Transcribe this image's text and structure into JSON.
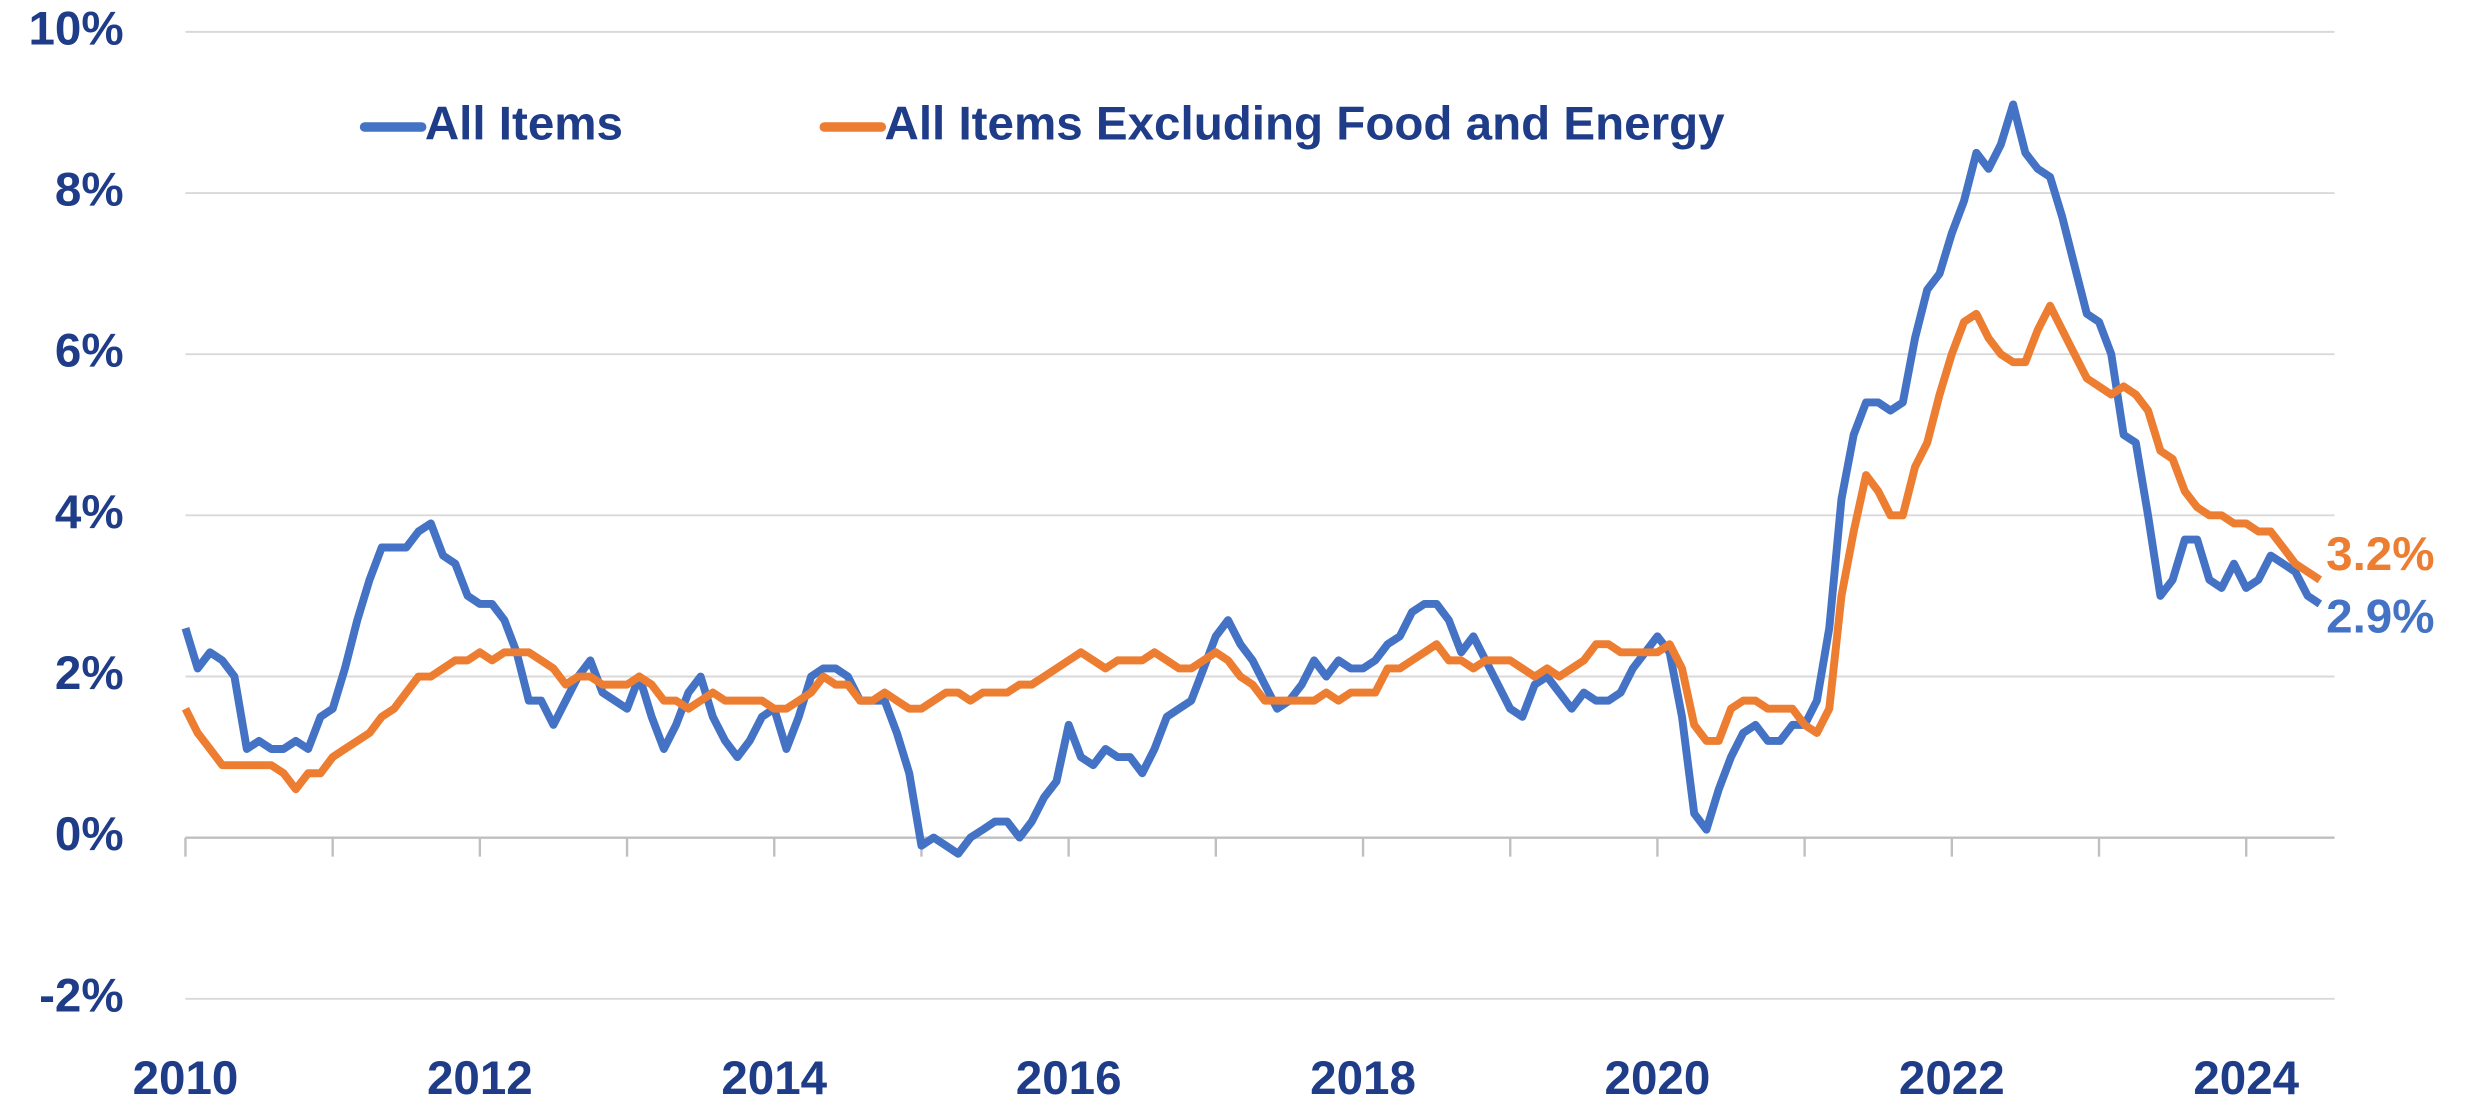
{
  "chart_data": {
    "type": "line",
    "legend": "top-left",
    "grid": true,
    "xlim": [
      2010,
      2024.6
    ],
    "xticks": [
      2010,
      2012,
      2014,
      2016,
      2018,
      2020,
      2022,
      2024
    ],
    "xminor_ticks": [
      2011,
      2013,
      2015,
      2017,
      2019,
      2021,
      2023
    ],
    "ylim": [
      -2,
      10
    ],
    "yticks": [
      {
        "value": -2,
        "label": "-2%"
      },
      {
        "value": 0,
        "label": "0%"
      },
      {
        "value": 2,
        "label": "2%"
      },
      {
        "value": 4,
        "label": "4%"
      },
      {
        "value": 6,
        "label": "6%"
      },
      {
        "value": 8,
        "label": "8%"
      },
      {
        "value": 10,
        "label": "10%"
      }
    ],
    "x": [
      2010,
      2010.083,
      2010.167,
      2010.25,
      2010.333,
      2010.417,
      2010.5,
      2010.583,
      2010.667,
      2010.75,
      2010.833,
      2010.917,
      2011,
      2011.083,
      2011.167,
      2011.25,
      2011.333,
      2011.417,
      2011.5,
      2011.583,
      2011.667,
      2011.75,
      2011.833,
      2011.917,
      2012,
      2012.083,
      2012.167,
      2012.25,
      2012.333,
      2012.417,
      2012.5,
      2012.583,
      2012.667,
      2012.75,
      2012.833,
      2012.917,
      2013,
      2013.083,
      2013.167,
      2013.25,
      2013.333,
      2013.417,
      2013.5,
      2013.583,
      2013.667,
      2013.75,
      2013.833,
      2013.917,
      2014,
      2014.083,
      2014.167,
      2014.25,
      2014.333,
      2014.417,
      2014.5,
      2014.583,
      2014.667,
      2014.75,
      2014.833,
      2014.917,
      2015,
      2015.083,
      2015.167,
      2015.25,
      2015.333,
      2015.417,
      2015.5,
      2015.583,
      2015.667,
      2015.75,
      2015.833,
      2015.917,
      2016,
      2016.083,
      2016.167,
      2016.25,
      2016.333,
      2016.417,
      2016.5,
      2016.583,
      2016.667,
      2016.75,
      2016.833,
      2016.917,
      2017,
      2017.083,
      2017.167,
      2017.25,
      2017.333,
      2017.417,
      2017.5,
      2017.583,
      2017.667,
      2017.75,
      2017.833,
      2017.917,
      2018,
      2018.083,
      2018.167,
      2018.25,
      2018.333,
      2018.417,
      2018.5,
      2018.583,
      2018.667,
      2018.75,
      2018.833,
      2018.917,
      2019,
      2019.083,
      2019.167,
      2019.25,
      2019.333,
      2019.417,
      2019.5,
      2019.583,
      2019.667,
      2019.75,
      2019.833,
      2019.917,
      2020,
      2020.083,
      2020.167,
      2020.25,
      2020.333,
      2020.417,
      2020.5,
      2020.583,
      2020.667,
      2020.75,
      2020.833,
      2020.917,
      2021,
      2021.083,
      2021.167,
      2021.25,
      2021.333,
      2021.417,
      2021.5,
      2021.583,
      2021.667,
      2021.75,
      2021.833,
      2021.917,
      2022,
      2022.083,
      2022.167,
      2022.25,
      2022.333,
      2022.417,
      2022.5,
      2022.583,
      2022.667,
      2022.75,
      2022.833,
      2022.917,
      2023,
      2023.083,
      2023.167,
      2023.25,
      2023.333,
      2023.417,
      2023.5,
      2023.583,
      2023.667,
      2023.75,
      2023.833,
      2023.917,
      2024,
      2024.083,
      2024.167,
      2024.25,
      2024.333,
      2024.417,
      2024.5
    ],
    "series": [
      {
        "name": "All Items",
        "color": "#4472c4",
        "end_label": "2.9%",
        "values": [
          2.6,
          2.1,
          2.3,
          2.2,
          2.0,
          1.1,
          1.2,
          1.1,
          1.1,
          1.2,
          1.1,
          1.5,
          1.6,
          2.1,
          2.7,
          3.2,
          3.6,
          3.6,
          3.6,
          3.8,
          3.9,
          3.5,
          3.4,
          3.0,
          2.9,
          2.9,
          2.7,
          2.3,
          1.7,
          1.7,
          1.4,
          1.7,
          2.0,
          2.2,
          1.8,
          1.7,
          1.6,
          2.0,
          1.5,
          1.1,
          1.4,
          1.8,
          2.0,
          1.5,
          1.2,
          1.0,
          1.2,
          1.5,
          1.6,
          1.1,
          1.5,
          2.0,
          2.1,
          2.1,
          2.0,
          1.7,
          1.7,
          1.7,
          1.3,
          0.8,
          -0.1,
          0.0,
          -0.1,
          -0.2,
          0.0,
          0.1,
          0.2,
          0.2,
          0.0,
          0.2,
          0.5,
          0.7,
          1.4,
          1.0,
          0.9,
          1.1,
          1.0,
          1.0,
          0.8,
          1.1,
          1.5,
          1.6,
          1.7,
          2.1,
          2.5,
          2.7,
          2.4,
          2.2,
          1.9,
          1.6,
          1.7,
          1.9,
          2.2,
          2.0,
          2.2,
          2.1,
          2.1,
          2.2,
          2.4,
          2.5,
          2.8,
          2.9,
          2.9,
          2.7,
          2.3,
          2.5,
          2.2,
          1.9,
          1.6,
          1.5,
          1.9,
          2.0,
          1.8,
          1.6,
          1.8,
          1.7,
          1.7,
          1.8,
          2.1,
          2.3,
          2.5,
          2.3,
          1.5,
          0.3,
          0.1,
          0.6,
          1.0,
          1.3,
          1.4,
          1.2,
          1.2,
          1.4,
          1.4,
          1.7,
          2.6,
          4.2,
          5.0,
          5.4,
          5.4,
          5.3,
          5.4,
          6.2,
          6.8,
          7.0,
          7.5,
          7.9,
          8.5,
          8.3,
          8.6,
          9.1,
          8.5,
          8.3,
          8.2,
          7.7,
          7.1,
          6.5,
          6.4,
          6.0,
          5.0,
          4.9,
          4.0,
          3.0,
          3.2,
          3.7,
          3.7,
          3.2,
          3.1,
          3.4,
          3.1,
          3.2,
          3.5,
          3.4,
          3.3,
          3.0,
          2.9
        ]
      },
      {
        "name": "All Items Excluding Food and Energy",
        "color": "#ed7d31",
        "end_label": "3.2%",
        "values": [
          1.6,
          1.3,
          1.1,
          0.9,
          0.9,
          0.9,
          0.9,
          0.9,
          0.8,
          0.6,
          0.8,
          0.8,
          1.0,
          1.1,
          1.2,
          1.3,
          1.5,
          1.6,
          1.8,
          2.0,
          2.0,
          2.1,
          2.2,
          2.2,
          2.3,
          2.2,
          2.3,
          2.3,
          2.3,
          2.2,
          2.1,
          1.9,
          2.0,
          2.0,
          1.9,
          1.9,
          1.9,
          2.0,
          1.9,
          1.7,
          1.7,
          1.6,
          1.7,
          1.8,
          1.7,
          1.7,
          1.7,
          1.7,
          1.6,
          1.6,
          1.7,
          1.8,
          2.0,
          1.9,
          1.9,
          1.7,
          1.7,
          1.8,
          1.7,
          1.6,
          1.6,
          1.7,
          1.8,
          1.8,
          1.7,
          1.8,
          1.8,
          1.8,
          1.9,
          1.9,
          2.0,
          2.1,
          2.2,
          2.3,
          2.2,
          2.1,
          2.2,
          2.2,
          2.2,
          2.3,
          2.2,
          2.1,
          2.1,
          2.2,
          2.3,
          2.2,
          2.0,
          1.9,
          1.7,
          1.7,
          1.7,
          1.7,
          1.7,
          1.8,
          1.7,
          1.8,
          1.8,
          1.8,
          2.1,
          2.1,
          2.2,
          2.3,
          2.4,
          2.2,
          2.2,
          2.1,
          2.2,
          2.2,
          2.2,
          2.1,
          2.0,
          2.1,
          2.0,
          2.1,
          2.2,
          2.4,
          2.4,
          2.3,
          2.3,
          2.3,
          2.3,
          2.4,
          2.1,
          1.4,
          1.2,
          1.2,
          1.6,
          1.7,
          1.7,
          1.6,
          1.6,
          1.6,
          1.4,
          1.3,
          1.6,
          3.0,
          3.8,
          4.5,
          4.3,
          4.0,
          4.0,
          4.6,
          4.9,
          5.5,
          6.0,
          6.4,
          6.5,
          6.2,
          6.0,
          5.9,
          5.9,
          6.3,
          6.6,
          6.3,
          6.0,
          5.7,
          5.6,
          5.5,
          5.6,
          5.5,
          5.3,
          4.8,
          4.7,
          4.3,
          4.1,
          4.0,
          4.0,
          3.9,
          3.9,
          3.8,
          3.8,
          3.6,
          3.4,
          3.3,
          3.2
        ]
      }
    ]
  }
}
